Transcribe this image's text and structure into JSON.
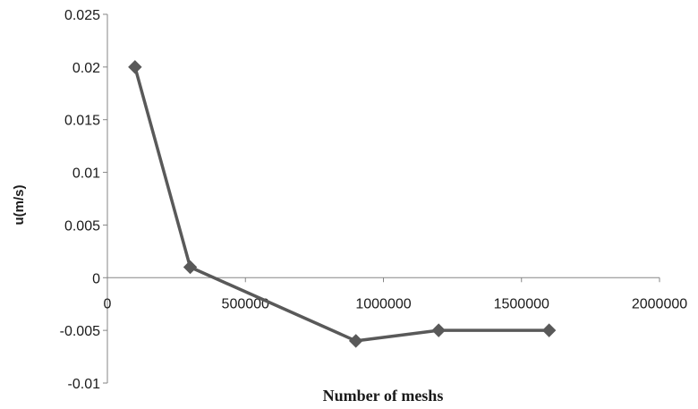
{
  "chart_data": {
    "type": "line",
    "title": "",
    "xlabel": "Number of meshs",
    "ylabel": "u(m/s)",
    "xlim": [
      0,
      2000000
    ],
    "ylim": [
      -0.01,
      0.025
    ],
    "x_ticks": [
      0,
      500000,
      1000000,
      1500000,
      2000000
    ],
    "x_tick_labels": [
      "0",
      "500000",
      "1000000",
      "1500000",
      "2000000"
    ],
    "y_ticks": [
      -0.01,
      -0.005,
      0,
      0.005,
      0.01,
      0.015,
      0.02,
      0.025
    ],
    "y_tick_labels": [
      "-0.01",
      "-0.005",
      "0",
      "0.005",
      "0.01",
      "0.015",
      "0.02",
      "0.025"
    ],
    "grid": false,
    "legend": "none",
    "series": [
      {
        "color": "#595959",
        "marker": "diamond",
        "x": [
          100000,
          300000,
          900000,
          1200000,
          1600000
        ],
        "y": [
          0.02,
          0.001,
          -0.006,
          -0.005,
          -0.005
        ]
      }
    ]
  }
}
